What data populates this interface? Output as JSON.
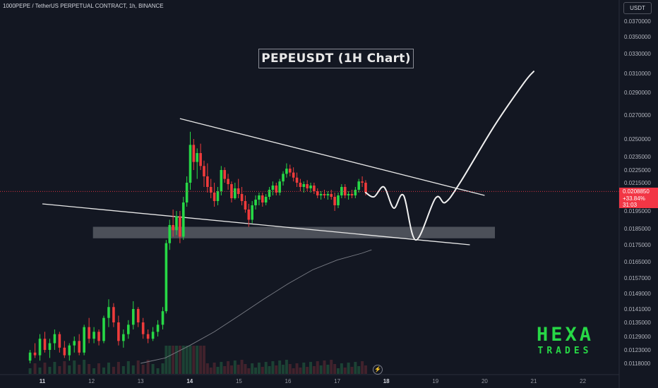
{
  "header": {
    "symbol_line": "1000PEPE / TetherUS PERPETUAL CONTRACT, 1h, BINANCE"
  },
  "currency_label": "USDT",
  "annotation_title": "PEPEUSDT (1H Chart)",
  "last_price": {
    "value": "0.0208850",
    "change": "+33.84%",
    "countdown": "31:03"
  },
  "watermark": {
    "line1": "HEXA",
    "line2": "TRADES"
  },
  "icons": {
    "flash": "flash-icon"
  },
  "colors": {
    "background": "#131722",
    "up": "#27d846",
    "down": "#ef3b3b",
    "price_line": "#f23645",
    "drawing": "#ffffff"
  },
  "chart_data": {
    "type": "candlestick",
    "title": "PEPEUSDT (1H Chart)",
    "y_ticks": [
      "0.0370000",
      "0.0350000",
      "0.0330000",
      "0.0310000",
      "0.0290000",
      "0.0270000",
      "0.0250000",
      "0.0235000",
      "0.0225000",
      "0.0215000",
      "0.0195000",
      "0.0185000",
      "0.0175000",
      "0.0165000",
      "0.0157000",
      "0.0149000",
      "0.0141000",
      "0.0135000",
      "0.0129000",
      "0.0123000",
      "0.0118000"
    ],
    "x_ticks": [
      "11",
      "12",
      "13",
      "14",
      "15",
      "16",
      "17",
      "18",
      "19",
      "20",
      "21",
      "22"
    ],
    "x_tick_days": [
      11,
      12,
      13,
      14,
      15,
      16,
      17,
      18,
      19,
      20,
      21,
      22
    ],
    "last_close": 0.020885,
    "candles": [
      {
        "d": 10.75,
        "o": 0.0119,
        "h": 0.0123,
        "l": 0.0118,
        "c": 0.0122
      },
      {
        "d": 10.85,
        "o": 0.0122,
        "h": 0.0126,
        "l": 0.012,
        "c": 0.0121
      },
      {
        "d": 10.95,
        "o": 0.0121,
        "h": 0.013,
        "l": 0.0119,
        "c": 0.0128
      },
      {
        "d": 11.05,
        "o": 0.0128,
        "h": 0.0131,
        "l": 0.0122,
        "c": 0.0123
      },
      {
        "d": 11.15,
        "o": 0.0123,
        "h": 0.0128,
        "l": 0.012,
        "c": 0.0126
      },
      {
        "d": 11.25,
        "o": 0.0126,
        "h": 0.0132,
        "l": 0.0123,
        "c": 0.013
      },
      {
        "d": 11.35,
        "o": 0.013,
        "h": 0.0131,
        "l": 0.0122,
        "c": 0.0124
      },
      {
        "d": 11.45,
        "o": 0.0124,
        "h": 0.0127,
        "l": 0.012,
        "c": 0.0121
      },
      {
        "d": 11.55,
        "o": 0.0121,
        "h": 0.0126,
        "l": 0.0119,
        "c": 0.0125
      },
      {
        "d": 11.65,
        "o": 0.0125,
        "h": 0.0129,
        "l": 0.0122,
        "c": 0.0127
      },
      {
        "d": 11.75,
        "o": 0.0127,
        "h": 0.013,
        "l": 0.0121,
        "c": 0.0122
      },
      {
        "d": 11.85,
        "o": 0.0122,
        "h": 0.0134,
        "l": 0.0121,
        "c": 0.0133
      },
      {
        "d": 11.95,
        "o": 0.0133,
        "h": 0.0137,
        "l": 0.0126,
        "c": 0.0128
      },
      {
        "d": 12.05,
        "o": 0.0128,
        "h": 0.0133,
        "l": 0.0126,
        "c": 0.0131
      },
      {
        "d": 12.15,
        "o": 0.0131,
        "h": 0.0132,
        "l": 0.0125,
        "c": 0.0127
      },
      {
        "d": 12.25,
        "o": 0.0127,
        "h": 0.0138,
        "l": 0.0126,
        "c": 0.0137
      },
      {
        "d": 12.35,
        "o": 0.0137,
        "h": 0.0146,
        "l": 0.0133,
        "c": 0.0142
      },
      {
        "d": 12.45,
        "o": 0.0142,
        "h": 0.0144,
        "l": 0.0133,
        "c": 0.0135
      },
      {
        "d": 12.55,
        "o": 0.0135,
        "h": 0.0138,
        "l": 0.0125,
        "c": 0.0127
      },
      {
        "d": 12.65,
        "o": 0.0127,
        "h": 0.0132,
        "l": 0.0124,
        "c": 0.013
      },
      {
        "d": 12.75,
        "o": 0.013,
        "h": 0.0136,
        "l": 0.0128,
        "c": 0.0134
      },
      {
        "d": 12.85,
        "o": 0.0134,
        "h": 0.0145,
        "l": 0.0132,
        "c": 0.0141
      },
      {
        "d": 12.95,
        "o": 0.0141,
        "h": 0.0142,
        "l": 0.0133,
        "c": 0.0135
      },
      {
        "d": 13.05,
        "o": 0.0135,
        "h": 0.0137,
        "l": 0.0128,
        "c": 0.013
      },
      {
        "d": 13.15,
        "o": 0.013,
        "h": 0.0132,
        "l": 0.0126,
        "c": 0.0128
      },
      {
        "d": 13.25,
        "o": 0.0128,
        "h": 0.0133,
        "l": 0.0127,
        "c": 0.0131
      },
      {
        "d": 13.35,
        "o": 0.0131,
        "h": 0.0136,
        "l": 0.0129,
        "c": 0.0134
      },
      {
        "d": 13.45,
        "o": 0.0134,
        "h": 0.0142,
        "l": 0.0132,
        "c": 0.014
      },
      {
        "d": 13.52,
        "o": 0.014,
        "h": 0.0178,
        "l": 0.0139,
        "c": 0.0176
      },
      {
        "d": 13.59,
        "o": 0.0176,
        "h": 0.019,
        "l": 0.0172,
        "c": 0.0187
      },
      {
        "d": 13.66,
        "o": 0.0187,
        "h": 0.0196,
        "l": 0.018,
        "c": 0.0184
      },
      {
        "d": 13.73,
        "o": 0.0184,
        "h": 0.0195,
        "l": 0.0181,
        "c": 0.0192
      },
      {
        "d": 13.8,
        "o": 0.0192,
        "h": 0.0195,
        "l": 0.0176,
        "c": 0.018
      },
      {
        "d": 13.87,
        "o": 0.018,
        "h": 0.0205,
        "l": 0.0178,
        "c": 0.0201
      },
      {
        "d": 13.94,
        "o": 0.0201,
        "h": 0.022,
        "l": 0.0198,
        "c": 0.0215
      },
      {
        "d": 14.01,
        "o": 0.0215,
        "h": 0.0256,
        "l": 0.021,
        "c": 0.0245
      },
      {
        "d": 14.08,
        "o": 0.0245,
        "h": 0.025,
        "l": 0.0225,
        "c": 0.0231
      },
      {
        "d": 14.15,
        "o": 0.0231,
        "h": 0.0242,
        "l": 0.0218,
        "c": 0.0238
      },
      {
        "d": 14.22,
        "o": 0.0238,
        "h": 0.0246,
        "l": 0.0225,
        "c": 0.0228
      },
      {
        "d": 14.29,
        "o": 0.0228,
        "h": 0.0232,
        "l": 0.0212,
        "c": 0.022
      },
      {
        "d": 14.36,
        "o": 0.022,
        "h": 0.023,
        "l": 0.0208,
        "c": 0.0212
      },
      {
        "d": 14.43,
        "o": 0.0212,
        "h": 0.0218,
        "l": 0.0204,
        "c": 0.0208
      },
      {
        "d": 14.5,
        "o": 0.0208,
        "h": 0.0215,
        "l": 0.0198,
        "c": 0.0202
      },
      {
        "d": 14.57,
        "o": 0.0202,
        "h": 0.0212,
        "l": 0.0199,
        "c": 0.0209
      },
      {
        "d": 14.64,
        "o": 0.0209,
        "h": 0.0228,
        "l": 0.0206,
        "c": 0.0225
      },
      {
        "d": 14.71,
        "o": 0.0225,
        "h": 0.0227,
        "l": 0.0215,
        "c": 0.0218
      },
      {
        "d": 14.78,
        "o": 0.0218,
        "h": 0.0222,
        "l": 0.021,
        "c": 0.0214
      },
      {
        "d": 14.85,
        "o": 0.0214,
        "h": 0.0216,
        "l": 0.0201,
        "c": 0.0204
      },
      {
        "d": 14.92,
        "o": 0.0204,
        "h": 0.0215,
        "l": 0.0203,
        "c": 0.0211
      },
      {
        "d": 14.99,
        "o": 0.0211,
        "h": 0.0218,
        "l": 0.0204,
        "c": 0.0207
      },
      {
        "d": 15.06,
        "o": 0.0207,
        "h": 0.0212,
        "l": 0.0199,
        "c": 0.0202
      },
      {
        "d": 15.13,
        "o": 0.0202,
        "h": 0.0206,
        "l": 0.0194,
        "c": 0.0196
      },
      {
        "d": 15.2,
        "o": 0.0196,
        "h": 0.02,
        "l": 0.0186,
        "c": 0.019
      },
      {
        "d": 15.27,
        "o": 0.019,
        "h": 0.0202,
        "l": 0.0188,
        "c": 0.0199
      },
      {
        "d": 15.34,
        "o": 0.0199,
        "h": 0.0206,
        "l": 0.0196,
        "c": 0.0203
      },
      {
        "d": 15.41,
        "o": 0.0203,
        "h": 0.0208,
        "l": 0.0199,
        "c": 0.0206
      },
      {
        "d": 15.48,
        "o": 0.0206,
        "h": 0.0208,
        "l": 0.0198,
        "c": 0.0201
      },
      {
        "d": 15.55,
        "o": 0.0201,
        "h": 0.0207,
        "l": 0.0199,
        "c": 0.0205
      },
      {
        "d": 15.62,
        "o": 0.0205,
        "h": 0.0212,
        "l": 0.0203,
        "c": 0.021
      },
      {
        "d": 15.69,
        "o": 0.021,
        "h": 0.0216,
        "l": 0.0206,
        "c": 0.0213
      },
      {
        "d": 15.76,
        "o": 0.0213,
        "h": 0.0215,
        "l": 0.0206,
        "c": 0.0208
      },
      {
        "d": 15.83,
        "o": 0.0208,
        "h": 0.0218,
        "l": 0.0206,
        "c": 0.0216
      },
      {
        "d": 15.9,
        "o": 0.0216,
        "h": 0.0224,
        "l": 0.0213,
        "c": 0.0222
      },
      {
        "d": 15.97,
        "o": 0.0222,
        "h": 0.023,
        "l": 0.0219,
        "c": 0.0226
      },
      {
        "d": 16.04,
        "o": 0.0226,
        "h": 0.0229,
        "l": 0.022,
        "c": 0.0223
      },
      {
        "d": 16.11,
        "o": 0.0223,
        "h": 0.0227,
        "l": 0.0216,
        "c": 0.0219
      },
      {
        "d": 16.18,
        "o": 0.0219,
        "h": 0.0223,
        "l": 0.0212,
        "c": 0.0215
      },
      {
        "d": 16.25,
        "o": 0.0215,
        "h": 0.0218,
        "l": 0.0209,
        "c": 0.0212
      },
      {
        "d": 16.32,
        "o": 0.0212,
        "h": 0.0216,
        "l": 0.0208,
        "c": 0.0214
      },
      {
        "d": 16.39,
        "o": 0.0214,
        "h": 0.0217,
        "l": 0.0209,
        "c": 0.0211
      },
      {
        "d": 16.46,
        "o": 0.0211,
        "h": 0.0215,
        "l": 0.0208,
        "c": 0.0213
      },
      {
        "d": 16.53,
        "o": 0.0213,
        "h": 0.0215,
        "l": 0.0207,
        "c": 0.0209
      },
      {
        "d": 16.6,
        "o": 0.0209,
        "h": 0.0211,
        "l": 0.0204,
        "c": 0.0206
      },
      {
        "d": 16.67,
        "o": 0.0206,
        "h": 0.0209,
        "l": 0.0203,
        "c": 0.0207
      },
      {
        "d": 16.74,
        "o": 0.0207,
        "h": 0.021,
        "l": 0.0204,
        "c": 0.0206
      },
      {
        "d": 16.81,
        "o": 0.0206,
        "h": 0.0209,
        "l": 0.0203,
        "c": 0.0207
      },
      {
        "d": 16.88,
        "o": 0.0207,
        "h": 0.021,
        "l": 0.0203,
        "c": 0.0205
      },
      {
        "d": 16.95,
        "o": 0.0205,
        "h": 0.0208,
        "l": 0.0195,
        "c": 0.0199
      },
      {
        "d": 17.02,
        "o": 0.0199,
        "h": 0.0208,
        "l": 0.0197,
        "c": 0.0206
      },
      {
        "d": 17.09,
        "o": 0.0206,
        "h": 0.0214,
        "l": 0.0204,
        "c": 0.0212
      },
      {
        "d": 17.16,
        "o": 0.0212,
        "h": 0.0214,
        "l": 0.0204,
        "c": 0.0206
      },
      {
        "d": 17.23,
        "o": 0.0206,
        "h": 0.0209,
        "l": 0.0203,
        "c": 0.0207
      },
      {
        "d": 17.3,
        "o": 0.0207,
        "h": 0.021,
        "l": 0.0204,
        "c": 0.0206
      },
      {
        "d": 17.37,
        "o": 0.0206,
        "h": 0.0212,
        "l": 0.0204,
        "c": 0.021
      },
      {
        "d": 17.44,
        "o": 0.021,
        "h": 0.0218,
        "l": 0.0208,
        "c": 0.0216
      },
      {
        "d": 17.51,
        "o": 0.0216,
        "h": 0.022,
        "l": 0.0212,
        "c": 0.0215
      },
      {
        "d": 17.58,
        "o": 0.0215,
        "h": 0.0217,
        "l": 0.0206,
        "c": 0.0208
      }
    ],
    "upper_trendline": [
      [
        13.8,
        0.0267
      ],
      [
        20.0,
        0.0206
      ]
    ],
    "lower_trendline": [
      [
        11.0,
        0.02
      ],
      [
        19.7,
        0.0175
      ]
    ],
    "support_zone": {
      "d_start": 12.03,
      "d_end": 20.21,
      "top": 0.0186,
      "bottom": 0.0179
    },
    "projection_path": [
      [
        17.58,
        0.0208
      ],
      [
        17.75,
        0.0205
      ],
      [
        17.95,
        0.0212
      ],
      [
        18.15,
        0.0197
      ],
      [
        18.35,
        0.0206
      ],
      [
        18.6,
        0.0178
      ],
      [
        19.0,
        0.0204
      ],
      [
        19.2,
        0.0201
      ],
      [
        19.5,
        0.0215
      ],
      [
        20.2,
        0.0261
      ],
      [
        20.8,
        0.03
      ],
      [
        21.0,
        0.0312
      ]
    ],
    "moving_average": [
      [
        13.0,
        0.0118
      ],
      [
        13.5,
        0.012
      ],
      [
        14.0,
        0.0125
      ],
      [
        14.5,
        0.0131
      ],
      [
        15.0,
        0.0138
      ],
      [
        15.5,
        0.0146
      ],
      [
        16.0,
        0.0154
      ],
      [
        16.5,
        0.0161
      ],
      [
        17.0,
        0.0166
      ],
      [
        17.5,
        0.017
      ],
      [
        17.7,
        0.0172
      ]
    ]
  }
}
